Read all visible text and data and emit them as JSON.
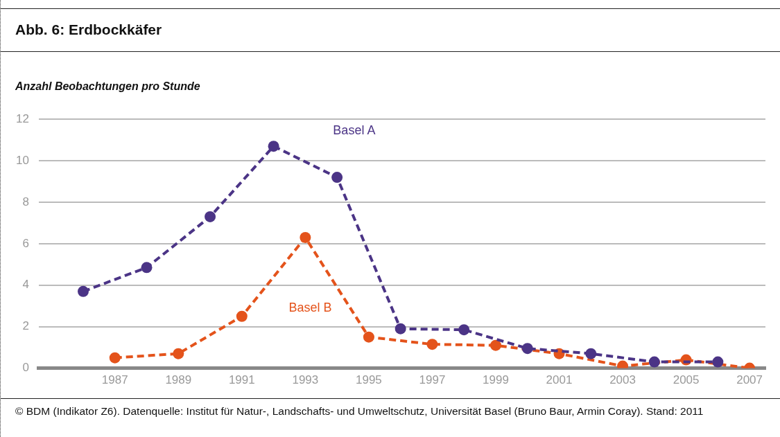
{
  "chart_data": {
    "type": "line",
    "title": "Abb. 6: Erdbockkäfer",
    "ylabel": "Anzahl Beobachtungen pro Stunde",
    "xlim": [
      1984.6,
      2007.5
    ],
    "xticks": [
      1987,
      1989,
      1991,
      1993,
      1995,
      1997,
      1999,
      2001,
      2003,
      2005,
      2007
    ],
    "ylim": [
      0,
      12
    ],
    "yticks": [
      0,
      2,
      4,
      6,
      8,
      10,
      12
    ],
    "grid": "y",
    "legend": false,
    "marker": "circle",
    "line_style": "dashed",
    "series": [
      {
        "name": "Basel A",
        "color": "#4b3486",
        "x": [
          1986,
          1988,
          1990,
          1992,
          1994,
          1996,
          1998,
          2000,
          2002,
          2004,
          2006
        ],
        "values": [
          3.7,
          4.85,
          7.3,
          10.7,
          9.2,
          1.9,
          1.85,
          0.95,
          0.7,
          0.3,
          0.3
        ]
      },
      {
        "name": "Basel B",
        "color": "#e4531b",
        "x": [
          1987,
          1989,
          1991,
          1993,
          1995,
          1997,
          1999,
          2001,
          2003,
          2005,
          2007
        ],
        "values": [
          0.5,
          0.7,
          2.5,
          6.3,
          1.5,
          1.15,
          1.1,
          0.7,
          0.1,
          0.4,
          0
        ]
      }
    ],
    "annotations": [
      "© BDM (Indikator Z6). Datenquelle: Institut für Natur-, Landschafts- und Umweltschutz, Universität Basel (Bruno Baur, Armin Coray). Stand: 2011"
    ]
  }
}
